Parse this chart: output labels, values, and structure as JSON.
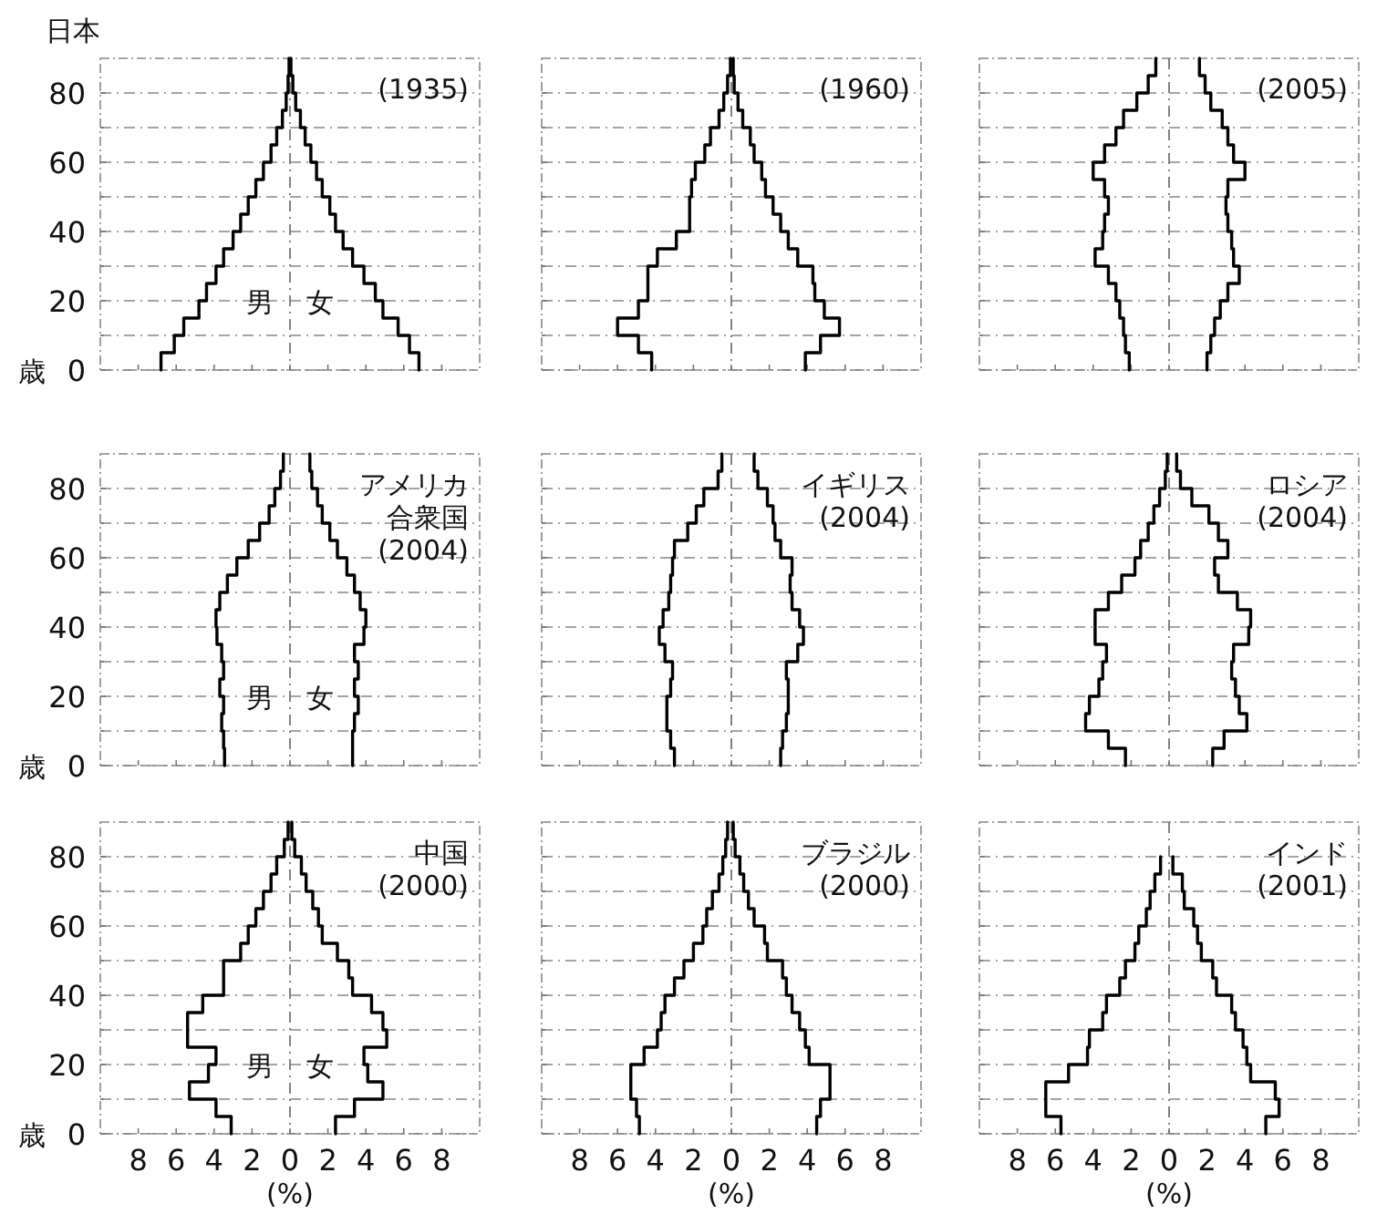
{
  "chart_data": [
    {
      "type": "line",
      "annotations": [
        "日本"
      ],
      "subtitle": "(1935)",
      "ylabel": "歳",
      "tick_labels": "y",
      "grid": "y",
      "xlim": [
        -10,
        10
      ],
      "ylim": [
        0,
        90
      ],
      "xticks": [
        {
          "value": -8,
          "label": "8"
        },
        {
          "value": -6,
          "label": "6"
        },
        {
          "value": -4,
          "label": "4"
        },
        {
          "value": -2,
          "label": "2"
        },
        0,
        2,
        4,
        6,
        8
      ],
      "yticks": [
        0,
        {
          "value": 10,
          "label": null
        },
        20,
        {
          "value": 30,
          "label": null
        },
        40,
        {
          "value": 50,
          "label": null
        },
        60,
        {
          "value": 70,
          "label": null
        },
        80
      ],
      "ref_lines": [
        {
          "axis": "x",
          "value": 0,
          "line_style": "dashed",
          "color": "#777777"
        }
      ],
      "series": [
        {
          "name": "男",
          "color": "#000000",
          "x": [
            -6.8,
            -6.8,
            -6.1,
            -6.1,
            -5.6,
            -5.6,
            -4.8,
            -4.8,
            -4.4,
            -4.4,
            -3.9,
            -3.9,
            -3.5,
            -3.5,
            -3.0,
            -3.0,
            -2.6,
            -2.6,
            -2.2,
            -2.2,
            -1.8,
            -1.8,
            -1.4,
            -1.4,
            -1.0,
            -1.0,
            -0.7,
            -0.7,
            -0.4,
            -0.4,
            -0.2,
            -0.2,
            -0.1,
            -0.1,
            -0.05,
            -0.05
          ],
          "values": [
            0,
            5,
            5,
            10,
            10,
            15,
            15,
            20,
            20,
            25,
            25,
            30,
            30,
            35,
            35,
            40,
            40,
            45,
            45,
            50,
            50,
            55,
            55,
            60,
            60,
            65,
            65,
            70,
            70,
            75,
            75,
            80,
            80,
            85,
            85,
            90
          ]
        },
        {
          "name": "女",
          "color": "#000000",
          "x": [
            6.8,
            6.8,
            6.3,
            6.3,
            5.7,
            5.7,
            4.9,
            4.9,
            4.5,
            4.5,
            3.9,
            3.9,
            3.3,
            3.3,
            2.8,
            2.8,
            2.4,
            2.4,
            2.1,
            2.1,
            1.7,
            1.7,
            1.4,
            1.4,
            1.1,
            1.1,
            0.8,
            0.8,
            0.55,
            0.55,
            0.3,
            0.3,
            0.15,
            0.15,
            0.05,
            0.05
          ],
          "values": [
            0,
            5,
            5,
            10,
            10,
            15,
            15,
            20,
            20,
            25,
            25,
            30,
            30,
            35,
            35,
            40,
            40,
            45,
            45,
            50,
            50,
            55,
            55,
            60,
            60,
            65,
            65,
            70,
            70,
            75,
            75,
            80,
            80,
            85,
            85,
            90
          ]
        }
      ]
    },
    {
      "type": "line",
      "subtitle": "(1960)",
      "tick_labels": false,
      "grid": "y",
      "xlim": [
        -10,
        10
      ],
      "ylim": [
        0,
        90
      ],
      "xticks": [
        {
          "value": -8,
          "label": "8"
        },
        {
          "value": -6,
          "label": "6"
        },
        {
          "value": -4,
          "label": "4"
        },
        {
          "value": -2,
          "label": "2"
        },
        0,
        2,
        4,
        6,
        8
      ],
      "yticks": [
        0,
        {
          "value": 10,
          "label": null
        },
        20,
        {
          "value": 30,
          "label": null
        },
        40,
        {
          "value": 50,
          "label": null
        },
        60,
        {
          "value": 70,
          "label": null
        },
        80
      ],
      "ref_lines": [
        {
          "axis": "x",
          "value": 0,
          "line_style": "dashed",
          "color": "#777777"
        }
      ],
      "series": [
        {
          "color": "#000000",
          "x": [
            -4.2,
            -4.2,
            -4.9,
            -4.9,
            -6.0,
            -6.0,
            -4.9,
            -4.9,
            -4.4,
            -4.4,
            -4.4,
            -4.4,
            -3.9,
            -3.9,
            -2.9,
            -2.9,
            -2.2,
            -2.2,
            -2.2,
            -2.2,
            -2.1,
            -2.1,
            -1.9,
            -1.9,
            -1.4,
            -1.4,
            -1.1,
            -1.1,
            -0.65,
            -0.65,
            -0.4,
            -0.4,
            -0.2,
            -0.2,
            -0.05,
            -0.05
          ],
          "values": [
            0,
            5,
            5,
            10,
            10,
            15,
            15,
            20,
            20,
            25,
            25,
            30,
            30,
            35,
            35,
            40,
            40,
            45,
            45,
            50,
            50,
            55,
            55,
            60,
            60,
            65,
            65,
            70,
            70,
            75,
            75,
            80,
            80,
            85,
            85,
            90
          ]
        },
        {
          "color": "#000000",
          "x": [
            3.9,
            3.9,
            4.7,
            4.7,
            5.7,
            5.7,
            4.9,
            4.9,
            4.4,
            4.4,
            4.3,
            4.3,
            3.5,
            3.5,
            3.0,
            3.0,
            2.6,
            2.6,
            2.2,
            2.2,
            1.8,
            1.8,
            1.6,
            1.6,
            1.2,
            1.2,
            1.0,
            1.0,
            0.6,
            0.6,
            0.35,
            0.35,
            0.15,
            0.15,
            0.1,
            0.1
          ],
          "values": [
            0,
            5,
            5,
            10,
            10,
            15,
            15,
            20,
            20,
            25,
            25,
            30,
            30,
            35,
            35,
            40,
            40,
            45,
            45,
            50,
            50,
            55,
            55,
            60,
            60,
            65,
            65,
            70,
            70,
            75,
            75,
            80,
            80,
            85,
            85,
            90
          ]
        }
      ]
    },
    {
      "type": "line",
      "subtitle": "(2005)",
      "tick_labels": false,
      "grid": "y",
      "xlim": [
        -10,
        10
      ],
      "ylim": [
        0,
        90
      ],
      "xticks": [
        {
          "value": -8,
          "label": "8"
        },
        {
          "value": -6,
          "label": "6"
        },
        {
          "value": -4,
          "label": "4"
        },
        {
          "value": -2,
          "label": "2"
        },
        0,
        2,
        4,
        6,
        8
      ],
      "yticks": [
        0,
        {
          "value": 10,
          "label": null
        },
        20,
        {
          "value": 30,
          "label": null
        },
        40,
        {
          "value": 50,
          "label": null
        },
        60,
        {
          "value": 70,
          "label": null
        },
        80
      ],
      "ref_lines": [
        {
          "axis": "x",
          "value": 0,
          "line_style": "dashed",
          "color": "#777777"
        }
      ],
      "series": [
        {
          "color": "#000000",
          "x": [
            -2.1,
            -2.1,
            -2.3,
            -2.3,
            -2.4,
            -2.4,
            -2.6,
            -2.6,
            -2.8,
            -2.8,
            -3.2,
            -3.2,
            -3.9,
            -3.9,
            -3.5,
            -3.5,
            -3.4,
            -3.4,
            -3.2,
            -3.2,
            -3.4,
            -3.4,
            -4.0,
            -4.0,
            -3.4,
            -3.4,
            -2.8,
            -2.8,
            -2.4,
            -2.4,
            -1.7,
            -1.7,
            -1.1,
            -1.1,
            -0.7,
            -0.7
          ],
          "values": [
            0,
            5,
            5,
            10,
            10,
            15,
            15,
            20,
            20,
            25,
            25,
            30,
            30,
            35,
            35,
            40,
            40,
            45,
            45,
            50,
            50,
            55,
            55,
            60,
            60,
            65,
            65,
            70,
            70,
            75,
            75,
            80,
            80,
            85,
            85,
            90
          ]
        },
        {
          "color": "#000000",
          "x": [
            2.0,
            2.0,
            2.2,
            2.2,
            2.4,
            2.4,
            2.7,
            2.7,
            3.1,
            3.1,
            3.7,
            3.7,
            3.4,
            3.4,
            3.3,
            3.3,
            3.1,
            3.1,
            3.0,
            3.0,
            3.1,
            3.1,
            4.0,
            4.0,
            3.4,
            3.4,
            3.1,
            3.1,
            2.8,
            2.8,
            2.2,
            2.2,
            1.9,
            1.9,
            1.6,
            1.6
          ],
          "values": [
            0,
            5,
            5,
            10,
            10,
            15,
            15,
            20,
            20,
            25,
            25,
            30,
            30,
            35,
            35,
            40,
            40,
            45,
            45,
            50,
            50,
            55,
            55,
            60,
            60,
            65,
            65,
            70,
            70,
            75,
            75,
            80,
            80,
            85,
            85,
            90
          ]
        }
      ]
    },
    {
      "type": "line",
      "title": "アメリカ合衆国",
      "subtitle": "(2004)",
      "ylabel": "歳",
      "tick_labels": "y",
      "grid": "y",
      "xlim": [
        -10,
        10
      ],
      "ylim": [
        0,
        90
      ],
      "xticks": [
        {
          "value": -8,
          "label": "8"
        },
        {
          "value": -6,
          "label": "6"
        },
        {
          "value": -4,
          "label": "4"
        },
        {
          "value": -2,
          "label": "2"
        },
        0,
        2,
        4,
        6,
        8
      ],
      "yticks": [
        0,
        {
          "value": 10,
          "label": null
        },
        20,
        {
          "value": 30,
          "label": null
        },
        40,
        {
          "value": 50,
          "label": null
        },
        60,
        {
          "value": 70,
          "label": null
        },
        80
      ],
      "ref_lines": [
        {
          "axis": "x",
          "value": 0,
          "line_style": "dashed",
          "color": "#777777"
        }
      ],
      "series": [
        {
          "name": "男",
          "color": "#000000",
          "x": [
            -3.45,
            -3.45,
            -3.5,
            -3.5,
            -3.6,
            -3.6,
            -3.5,
            -3.5,
            -3.7,
            -3.7,
            -3.5,
            -3.5,
            -3.6,
            -3.6,
            -3.85,
            -3.85,
            -3.9,
            -3.9,
            -3.7,
            -3.7,
            -3.3,
            -3.3,
            -2.8,
            -2.8,
            -2.2,
            -2.2,
            -1.6,
            -1.6,
            -1.1,
            -1.1,
            -0.8,
            -0.8,
            -0.5,
            -0.5,
            -0.35,
            -0.35
          ],
          "values": [
            0,
            5,
            5,
            10,
            10,
            15,
            15,
            20,
            20,
            25,
            25,
            30,
            30,
            35,
            35,
            40,
            40,
            45,
            45,
            50,
            50,
            55,
            55,
            60,
            60,
            65,
            65,
            70,
            70,
            75,
            75,
            80,
            80,
            85,
            85,
            90
          ]
        },
        {
          "name": "女",
          "color": "#000000",
          "x": [
            3.3,
            3.3,
            3.3,
            3.3,
            3.4,
            3.4,
            3.6,
            3.6,
            3.4,
            3.4,
            3.6,
            3.6,
            3.4,
            3.4,
            3.9,
            3.9,
            4.0,
            4.0,
            3.7,
            3.7,
            3.4,
            3.4,
            3.0,
            3.0,
            2.5,
            2.5,
            2.1,
            2.1,
            1.7,
            1.7,
            1.45,
            1.45,
            1.15,
            1.15,
            1.05,
            1.05
          ],
          "values": [
            0,
            5,
            5,
            10,
            10,
            15,
            15,
            20,
            20,
            25,
            25,
            30,
            30,
            35,
            35,
            40,
            40,
            45,
            45,
            50,
            50,
            55,
            55,
            60,
            60,
            65,
            65,
            70,
            70,
            75,
            75,
            80,
            80,
            85,
            85,
            90
          ]
        }
      ]
    },
    {
      "type": "line",
      "title": "イギリス",
      "subtitle": "(2004)",
      "tick_labels": false,
      "grid": "y",
      "xlim": [
        -10,
        10
      ],
      "ylim": [
        0,
        90
      ],
      "xticks": [
        {
          "value": -8,
          "label": "8"
        },
        {
          "value": -6,
          "label": "6"
        },
        {
          "value": -4,
          "label": "4"
        },
        {
          "value": -2,
          "label": "2"
        },
        0,
        2,
        4,
        6,
        8
      ],
      "yticks": [
        0,
        {
          "value": 10,
          "label": null
        },
        20,
        {
          "value": 30,
          "label": null
        },
        40,
        {
          "value": 50,
          "label": null
        },
        60,
        {
          "value": 70,
          "label": null
        },
        80
      ],
      "ref_lines": [
        {
          "axis": "x",
          "value": 0,
          "line_style": "dashed",
          "color": "#777777"
        }
      ],
      "series": [
        {
          "color": "#000000",
          "x": [
            -3.0,
            -3.0,
            -3.2,
            -3.2,
            -3.4,
            -3.4,
            -3.4,
            -3.4,
            -3.2,
            -3.2,
            -3.1,
            -3.1,
            -3.5,
            -3.5,
            -3.8,
            -3.8,
            -3.6,
            -3.6,
            -3.3,
            -3.3,
            -3.2,
            -3.2,
            -3.1,
            -3.1,
            -3.0,
            -3.0,
            -2.3,
            -2.3,
            -1.85,
            -1.85,
            -1.45,
            -1.45,
            -0.7,
            -0.7,
            -0.5,
            -0.5
          ],
          "values": [
            0,
            5,
            5,
            10,
            10,
            15,
            15,
            20,
            20,
            25,
            25,
            30,
            30,
            35,
            35,
            40,
            40,
            45,
            45,
            50,
            50,
            55,
            55,
            60,
            60,
            65,
            65,
            70,
            70,
            75,
            75,
            80,
            80,
            85,
            85,
            90
          ]
        },
        {
          "color": "#000000",
          "x": [
            2.6,
            2.6,
            2.7,
            2.7,
            2.9,
            2.9,
            3.0,
            3.0,
            3.0,
            3.0,
            2.9,
            2.9,
            3.5,
            3.5,
            3.8,
            3.8,
            3.6,
            3.6,
            3.2,
            3.2,
            3.1,
            3.1,
            3.2,
            3.2,
            2.6,
            2.6,
            2.3,
            2.3,
            2.2,
            2.2,
            1.9,
            1.9,
            1.4,
            1.4,
            1.2,
            1.2
          ],
          "values": [
            0,
            5,
            5,
            10,
            10,
            15,
            15,
            20,
            20,
            25,
            25,
            30,
            30,
            35,
            35,
            40,
            40,
            45,
            45,
            50,
            50,
            55,
            55,
            60,
            60,
            65,
            65,
            70,
            70,
            75,
            75,
            80,
            80,
            85,
            85,
            90
          ]
        }
      ]
    },
    {
      "type": "line",
      "title": "ロシア",
      "subtitle": "(2004)",
      "tick_labels": false,
      "grid": "y",
      "xlim": [
        -10,
        10
      ],
      "ylim": [
        0,
        90
      ],
      "xticks": [
        {
          "value": -8,
          "label": "8"
        },
        {
          "value": -6,
          "label": "6"
        },
        {
          "value": -4,
          "label": "4"
        },
        {
          "value": -2,
          "label": "2"
        },
        0,
        2,
        4,
        6,
        8
      ],
      "yticks": [
        0,
        {
          "value": 10,
          "label": null
        },
        20,
        {
          "value": 30,
          "label": null
        },
        40,
        {
          "value": 50,
          "label": null
        },
        60,
        {
          "value": 70,
          "label": null
        },
        80
      ],
      "ref_lines": [
        {
          "axis": "x",
          "value": 0,
          "line_style": "dashed",
          "color": "#777777"
        }
      ],
      "series": [
        {
          "color": "#000000",
          "x": [
            -2.3,
            -2.3,
            -3.2,
            -3.2,
            -4.4,
            -4.4,
            -4.2,
            -4.2,
            -3.7,
            -3.7,
            -3.5,
            -3.5,
            -3.3,
            -3.3,
            -3.9,
            -3.9,
            -3.9,
            -3.9,
            -3.2,
            -3.2,
            -2.5,
            -2.5,
            -1.8,
            -1.8,
            -1.5,
            -1.5,
            -1.1,
            -1.1,
            -0.8,
            -0.8,
            -0.5,
            -0.5,
            -0.2,
            -0.2,
            -0.1,
            -0.1
          ],
          "values": [
            0,
            5,
            5,
            10,
            10,
            15,
            15,
            20,
            20,
            25,
            25,
            30,
            30,
            35,
            35,
            40,
            40,
            45,
            45,
            50,
            50,
            55,
            55,
            60,
            60,
            65,
            65,
            70,
            70,
            75,
            75,
            80,
            80,
            85,
            85,
            90
          ]
        },
        {
          "color": "#000000",
          "x": [
            2.3,
            2.3,
            2.9,
            2.9,
            4.1,
            4.1,
            3.7,
            3.7,
            3.5,
            3.5,
            3.3,
            3.3,
            3.4,
            3.4,
            4.2,
            4.2,
            4.3,
            4.3,
            3.6,
            3.6,
            2.6,
            2.6,
            2.4,
            2.4,
            3.1,
            3.1,
            2.6,
            2.6,
            2.1,
            2.1,
            1.2,
            1.2,
            0.6,
            0.6,
            0.4,
            0.4
          ],
          "values": [
            0,
            5,
            5,
            10,
            10,
            15,
            15,
            20,
            20,
            25,
            25,
            30,
            30,
            35,
            35,
            40,
            40,
            45,
            45,
            50,
            50,
            55,
            55,
            60,
            60,
            65,
            65,
            70,
            70,
            75,
            75,
            80,
            80,
            85,
            85,
            90
          ]
        }
      ]
    },
    {
      "type": "line",
      "title": "中国",
      "subtitle": "(2000)",
      "ylabel": "歳",
      "xlabel": "(%)",
      "grid": "y",
      "xlim": [
        -10,
        10
      ],
      "ylim": [
        0,
        90
      ],
      "xticks": [
        {
          "value": -8,
          "label": "8"
        },
        {
          "value": -6,
          "label": "6"
        },
        {
          "value": -4,
          "label": "4"
        },
        {
          "value": -2,
          "label": "2"
        },
        0,
        2,
        4,
        6,
        8
      ],
      "yticks": [
        0,
        {
          "value": 10,
          "label": null
        },
        20,
        {
          "value": 30,
          "label": null
        },
        40,
        {
          "value": 50,
          "label": null
        },
        60,
        {
          "value": 70,
          "label": null
        },
        80
      ],
      "ref_lines": [
        {
          "axis": "x",
          "value": 0,
          "line_style": "dashed",
          "color": "#777777"
        }
      ],
      "series": [
        {
          "name": "男",
          "color": "#000000",
          "x": [
            -3.1,
            -3.1,
            -3.9,
            -3.9,
            -5.3,
            -5.3,
            -4.3,
            -4.3,
            -3.9,
            -3.9,
            -5.4,
            -5.4,
            -5.4,
            -5.4,
            -4.6,
            -4.6,
            -3.5,
            -3.5,
            -3.5,
            -3.5,
            -2.6,
            -2.6,
            -2.2,
            -2.2,
            -1.8,
            -1.8,
            -1.4,
            -1.4,
            -1.0,
            -1.0,
            -0.7,
            -0.7,
            -0.3,
            -0.3,
            -0.1,
            -0.1
          ],
          "values": [
            0,
            5,
            5,
            10,
            10,
            15,
            15,
            20,
            20,
            25,
            25,
            30,
            30,
            35,
            35,
            40,
            40,
            45,
            45,
            50,
            50,
            55,
            55,
            60,
            60,
            65,
            65,
            70,
            70,
            75,
            75,
            80,
            80,
            85,
            85,
            90
          ]
        },
        {
          "name": "女",
          "color": "#000000",
          "x": [
            2.4,
            2.4,
            3.4,
            3.4,
            4.9,
            4.9,
            4.1,
            4.1,
            3.9,
            3.9,
            5.1,
            5.1,
            4.9,
            4.9,
            4.3,
            4.3,
            3.3,
            3.3,
            3.1,
            3.1,
            2.5,
            2.5,
            1.7,
            1.7,
            1.5,
            1.5,
            1.2,
            1.2,
            0.85,
            0.85,
            0.6,
            0.6,
            0.25,
            0.25,
            0.1,
            0.1
          ],
          "values": [
            0,
            5,
            5,
            10,
            10,
            15,
            15,
            20,
            20,
            25,
            25,
            30,
            30,
            35,
            35,
            40,
            40,
            45,
            45,
            50,
            50,
            55,
            55,
            60,
            60,
            65,
            65,
            70,
            70,
            75,
            75,
            80,
            80,
            85,
            85,
            90
          ]
        }
      ]
    },
    {
      "type": "line",
      "title": "ブラジル",
      "subtitle": "(2000)",
      "xlabel": "(%)",
      "tick_labels": "x",
      "grid": "y",
      "xlim": [
        -10,
        10
      ],
      "ylim": [
        0,
        90
      ],
      "xticks": [
        {
          "value": -8,
          "label": "8"
        },
        {
          "value": -6,
          "label": "6"
        },
        {
          "value": -4,
          "label": "4"
        },
        {
          "value": -2,
          "label": "2"
        },
        0,
        2,
        4,
        6,
        8
      ],
      "yticks": [
        0,
        {
          "value": 10,
          "label": null
        },
        20,
        {
          "value": 30,
          "label": null
        },
        40,
        {
          "value": 50,
          "label": null
        },
        60,
        {
          "value": 70,
          "label": null
        },
        80
      ],
      "ref_lines": [
        {
          "axis": "x",
          "value": 0,
          "line_style": "dashed",
          "color": "#777777"
        }
      ],
      "series": [
        {
          "color": "#000000",
          "x": [
            -4.85,
            -4.85,
            -5.0,
            -5.0,
            -5.3,
            -5.3,
            -5.3,
            -5.3,
            -4.6,
            -4.6,
            -3.9,
            -3.9,
            -3.7,
            -3.7,
            -3.5,
            -3.5,
            -3.0,
            -3.0,
            -2.5,
            -2.5,
            -2.0,
            -2.0,
            -1.5,
            -1.5,
            -1.3,
            -1.3,
            -1.0,
            -1.0,
            -0.65,
            -0.65,
            -0.45,
            -0.45,
            -0.3,
            -0.3,
            -0.2,
            -0.2
          ],
          "values": [
            0,
            5,
            5,
            10,
            10,
            15,
            15,
            20,
            20,
            25,
            25,
            30,
            30,
            35,
            35,
            40,
            40,
            45,
            45,
            50,
            50,
            55,
            55,
            60,
            60,
            65,
            65,
            70,
            70,
            75,
            75,
            80,
            80,
            85,
            85,
            90
          ]
        },
        {
          "color": "#000000",
          "x": [
            4.5,
            4.5,
            4.7,
            4.7,
            5.2,
            5.2,
            5.2,
            5.2,
            4.1,
            4.1,
            3.9,
            3.9,
            3.6,
            3.6,
            3.2,
            3.2,
            2.9,
            2.9,
            2.7,
            2.7,
            1.9,
            1.9,
            1.75,
            1.75,
            1.2,
            1.2,
            0.9,
            0.9,
            0.65,
            0.65,
            0.45,
            0.45,
            0.2,
            0.2,
            0.1,
            0.1
          ],
          "values": [
            0,
            5,
            5,
            10,
            10,
            15,
            15,
            20,
            20,
            25,
            25,
            30,
            30,
            35,
            35,
            40,
            40,
            45,
            45,
            50,
            50,
            55,
            55,
            60,
            60,
            65,
            65,
            70,
            70,
            75,
            75,
            80,
            80,
            85,
            85,
            90
          ]
        }
      ]
    },
    {
      "type": "line",
      "title": "インド",
      "subtitle": "(2001)",
      "xlabel": "(%)",
      "tick_labels": "x",
      "grid": "y",
      "xlim": [
        -10,
        10
      ],
      "ylim": [
        0,
        90
      ],
      "xticks": [
        {
          "value": -8,
          "label": "8"
        },
        {
          "value": -6,
          "label": "6"
        },
        {
          "value": -4,
          "label": "4"
        },
        {
          "value": -2,
          "label": "2"
        },
        0,
        2,
        4,
        6,
        8
      ],
      "yticks": [
        0,
        {
          "value": 10,
          "label": null
        },
        20,
        {
          "value": 30,
          "label": null
        },
        40,
        {
          "value": 50,
          "label": null
        },
        60,
        {
          "value": 70,
          "label": null
        },
        80
      ],
      "ref_lines": [
        {
          "axis": "x",
          "value": 0,
          "line_style": "dashed",
          "color": "#777777"
        }
      ],
      "series": [
        {
          "color": "#000000",
          "x": [
            -5.7,
            -5.7,
            -6.5,
            -6.5,
            -6.5,
            -6.5,
            -5.3,
            -5.3,
            -4.3,
            -4.3,
            -4.2,
            -4.2,
            -3.5,
            -3.5,
            -3.3,
            -3.3,
            -2.6,
            -2.6,
            -2.3,
            -2.3,
            -1.8,
            -1.8,
            -1.6,
            -1.6,
            -1.2,
            -1.2,
            -1.0,
            -1.0,
            -0.75,
            -0.75,
            -0.45,
            -0.45
          ],
          "values": [
            0,
            5,
            5,
            10,
            10,
            15,
            15,
            20,
            20,
            25,
            25,
            30,
            30,
            35,
            35,
            40,
            40,
            45,
            45,
            50,
            50,
            55,
            55,
            60,
            60,
            65,
            65,
            70,
            70,
            75,
            75,
            80
          ]
        },
        {
          "color": "#000000",
          "x": [
            5.1,
            5.1,
            5.8,
            5.8,
            5.6,
            5.6,
            4.3,
            4.3,
            4.1,
            4.1,
            3.9,
            3.9,
            3.5,
            3.5,
            3.3,
            3.3,
            2.5,
            2.5,
            2.3,
            2.3,
            1.7,
            1.7,
            1.5,
            1.5,
            1.3,
            1.3,
            0.8,
            0.8,
            0.7,
            0.7,
            0.2,
            0.2
          ],
          "values": [
            0,
            5,
            5,
            10,
            10,
            15,
            15,
            20,
            20,
            25,
            25,
            30,
            30,
            35,
            35,
            40,
            40,
            45,
            45,
            50,
            50,
            55,
            55,
            60,
            60,
            65,
            65,
            70,
            70,
            75,
            75,
            80
          ]
        }
      ]
    }
  ]
}
